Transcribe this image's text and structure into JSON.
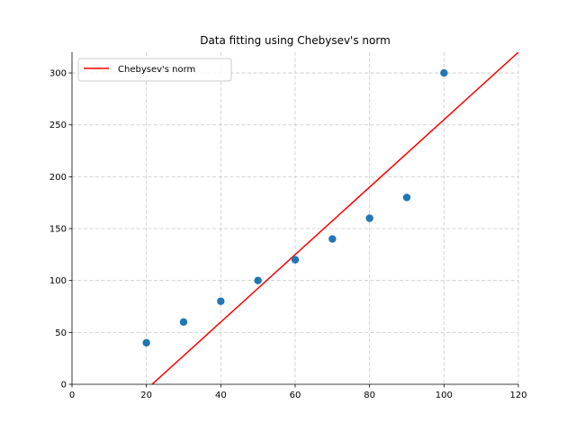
{
  "chart_data": {
    "type": "scatter",
    "title": "Data fitting using Chebysev's norm",
    "xlabel": "",
    "ylabel": "",
    "xlim": [
      0,
      120
    ],
    "ylim": [
      0,
      320
    ],
    "x_ticks": [
      0,
      20,
      40,
      60,
      80,
      100,
      120
    ],
    "y_ticks": [
      0,
      50,
      100,
      150,
      200,
      250,
      300
    ],
    "grid": true,
    "legend_position": "top-left",
    "points": {
      "x": [
        20,
        30,
        40,
        50,
        60,
        70,
        80,
        90,
        100
      ],
      "y": [
        40,
        60,
        80,
        100,
        120,
        140,
        160,
        180,
        300
      ],
      "color": "#1f77b4"
    },
    "fit_line": {
      "name": "Chebysev's norm",
      "color": "#ff0000",
      "x": [
        20,
        120
      ],
      "y": [
        -5,
        320
      ]
    }
  }
}
